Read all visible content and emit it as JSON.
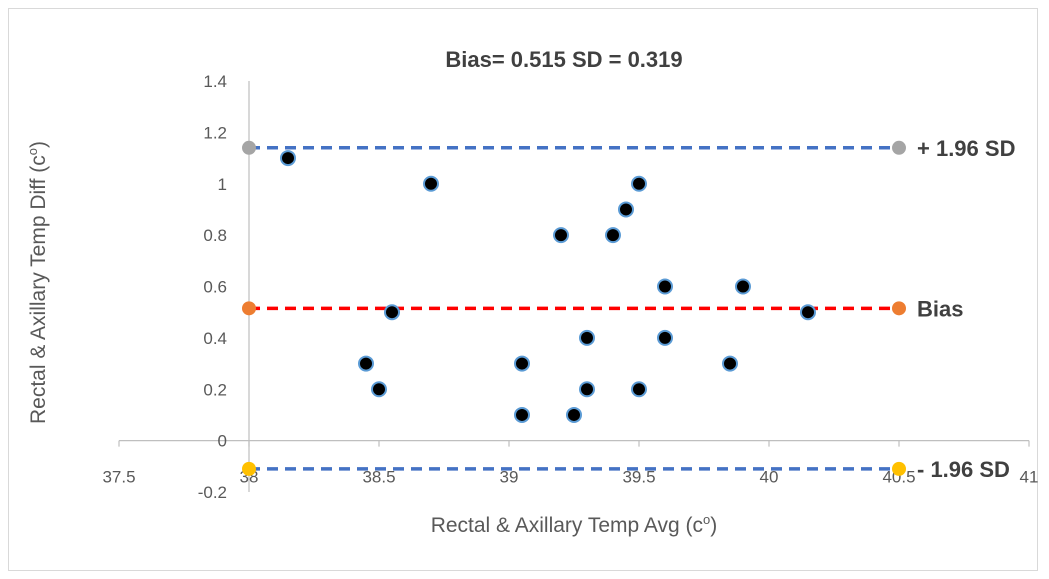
{
  "chart_data": {
    "type": "scatter",
    "title": "Bias= 0.515  SD = 0.319",
    "xlabel": "Rectal & Axillary Temp Avg (c",
    "xlabel_sup": "o",
    "xlabel_suffix": ")",
    "ylabel": "Rectal & Axillary  Temp Diff (c",
    "ylabel_sup": "o",
    "ylabel_suffix": ")",
    "xlim": [
      37.5,
      41
    ],
    "ylim": [
      -0.2,
      1.4
    ],
    "x_ticks": [
      37.5,
      38,
      38.5,
      39,
      39.5,
      40,
      40.5,
      41
    ],
    "x_tick_labels": [
      "37.5",
      "38",
      "38.5",
      "39",
      "39.5",
      "40",
      "40.5",
      "41"
    ],
    "y_ticks": [
      -0.2,
      0,
      0.2,
      0.4,
      0.6,
      0.8,
      1,
      1.2,
      1.4
    ],
    "y_tick_labels": [
      "-0.2",
      "0",
      "0.2",
      "0.4",
      "0.6",
      "0.8",
      "1",
      "1.2",
      "1.4"
    ],
    "grid": false,
    "points": [
      {
        "x": 38.15,
        "y": 1.1
      },
      {
        "x": 38.7,
        "y": 1.0
      },
      {
        "x": 38.45,
        "y": 0.3
      },
      {
        "x": 38.5,
        "y": 0.2
      },
      {
        "x": 38.55,
        "y": 0.5
      },
      {
        "x": 39.05,
        "y": 0.3
      },
      {
        "x": 39.05,
        "y": 0.1
      },
      {
        "x": 39.2,
        "y": 0.8
      },
      {
        "x": 39.25,
        "y": 0.1
      },
      {
        "x": 39.3,
        "y": 0.4
      },
      {
        "x": 39.3,
        "y": 0.2
      },
      {
        "x": 39.4,
        "y": 0.8
      },
      {
        "x": 39.45,
        "y": 0.9
      },
      {
        "x": 39.5,
        "y": 1.0
      },
      {
        "x": 39.5,
        "y": 0.2
      },
      {
        "x": 39.6,
        "y": 0.6
      },
      {
        "x": 39.6,
        "y": 0.4
      },
      {
        "x": 39.85,
        "y": 0.3
      },
      {
        "x": 39.9,
        "y": 0.6
      },
      {
        "x": 40.15,
        "y": 0.5
      }
    ],
    "reference_lines": [
      {
        "name": "+ 1.96 SD",
        "y": 1.14,
        "x_range": [
          38,
          40.5
        ],
        "line_color": "#4472c4",
        "marker_color": "#a5a5a5"
      },
      {
        "name": "Bias",
        "y": 0.515,
        "x_range": [
          38,
          40.5
        ],
        "line_color": "#ff0000",
        "marker_color": "#ed7d31"
      },
      {
        "name": "- 1.96 SD",
        "y": -0.11,
        "x_range": [
          38,
          40.5
        ],
        "line_color": "#4472c4",
        "marker_color": "#ffc000"
      }
    ],
    "colors": {
      "point_fill": "#000000",
      "point_stroke": "#5b9bd5",
      "axis": "#bfbfbf"
    }
  }
}
